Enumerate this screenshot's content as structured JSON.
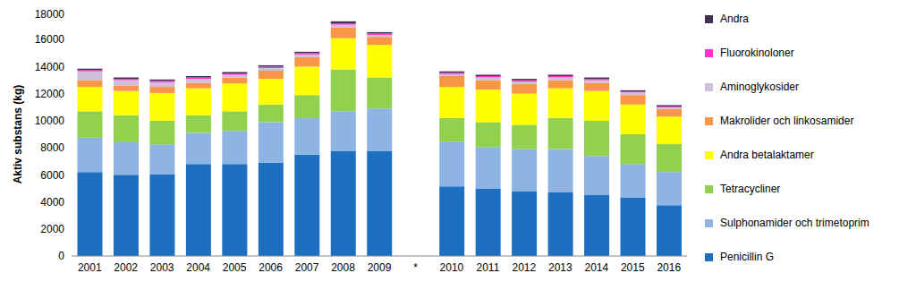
{
  "chart_data": {
    "type": "bar",
    "stacked": true,
    "grid": false,
    "legend": "right",
    "y_label": "Aktiv substans (kg)",
    "categories": [
      "2001",
      "2002",
      "2003",
      "2004",
      "2005",
      "2006",
      "2007",
      "2008",
      "2009",
      "*",
      "2010",
      "2011",
      "2012",
      "2013",
      "2014",
      "2015",
      "2016"
    ],
    "ylim": [
      0,
      18000
    ],
    "yticks": [
      0,
      2000,
      4000,
      6000,
      8000,
      10000,
      12000,
      14000,
      16000,
      18000
    ],
    "series": [
      {
        "name": "Penicillin G",
        "color": "#1f6fc0",
        "values": [
          6200,
          6000,
          6050,
          6800,
          6800,
          6900,
          7500,
          7750,
          7750,
          null,
          5150,
          5000,
          4800,
          4700,
          4500,
          4300,
          3750
        ]
      },
      {
        "name": "Sulphonamider och trimetoprim",
        "color": "#8db4e2",
        "values": [
          2550,
          2400,
          2200,
          2300,
          2450,
          3000,
          2700,
          2950,
          3150,
          null,
          3300,
          3050,
          3100,
          3200,
          2900,
          2500,
          2450
        ]
      },
      {
        "name": "Tetracycliner",
        "color": "#92d050",
        "values": [
          1950,
          2000,
          1750,
          1300,
          1450,
          1300,
          1700,
          3100,
          2300,
          null,
          1750,
          1850,
          1800,
          2300,
          2600,
          2200,
          2100
        ]
      },
      {
        "name": "Andra betalaktamer",
        "color": "#ffff00",
        "values": [
          1800,
          1800,
          2050,
          2000,
          2050,
          1900,
          2100,
          2300,
          2400,
          null,
          2300,
          2400,
          2300,
          2200,
          2200,
          2200,
          2000
        ]
      },
      {
        "name": "Makrolider och linkosamider",
        "color": "#f79646",
        "values": [
          500,
          400,
          450,
          400,
          450,
          600,
          700,
          800,
          600,
          null,
          800,
          700,
          700,
          600,
          600,
          700,
          550
        ]
      },
      {
        "name": "Aminoglykosider",
        "color": "#ccc0da",
        "values": [
          650,
          400,
          350,
          300,
          200,
          200,
          200,
          200,
          150,
          null,
          150,
          200,
          200,
          200,
          200,
          200,
          150
        ]
      },
      {
        "name": "Fluorokinoloner",
        "color": "#ff33cc",
        "values": [
          100,
          100,
          100,
          100,
          100,
          100,
          100,
          100,
          100,
          null,
          100,
          100,
          100,
          100,
          100,
          50,
          50
        ]
      },
      {
        "name": "Andra",
        "color": "#403152",
        "values": [
          100,
          100,
          100,
          100,
          100,
          100,
          100,
          150,
          100,
          null,
          100,
          100,
          100,
          100,
          100,
          100,
          100
        ]
      }
    ]
  }
}
